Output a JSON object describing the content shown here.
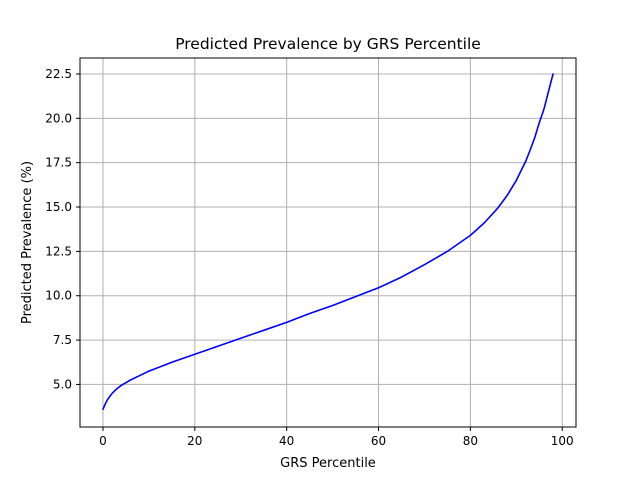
{
  "chart_data": {
    "type": "line",
    "title": "Predicted Prevalence by GRS Percentile",
    "xlabel": "GRS Percentile",
    "ylabel": "Predicted Prevalence (%)",
    "xlim": [
      -5,
      103
    ],
    "ylim": [
      2.6,
      23.4
    ],
    "xticks": [
      0,
      20,
      40,
      60,
      80,
      100
    ],
    "yticks": [
      5.0,
      7.5,
      10.0,
      12.5,
      15.0,
      17.5,
      20.0,
      22.5
    ],
    "xtick_labels": [
      "0",
      "20",
      "40",
      "60",
      "80",
      "100"
    ],
    "ytick_labels": [
      "5.0",
      "7.5",
      "10.0",
      "12.5",
      "15.0",
      "17.5",
      "20.0",
      "22.5"
    ],
    "grid": true,
    "series": [
      {
        "color": "#0000ff",
        "x": [
          0,
          0.5,
          1,
          2,
          3,
          4,
          5,
          6,
          8,
          10,
          12,
          15,
          20,
          25,
          30,
          35,
          40,
          45,
          50,
          55,
          60,
          65,
          70,
          75,
          80,
          83,
          86,
          88,
          90,
          92,
          93,
          94,
          95,
          96,
          96.5,
          97,
          97.5,
          98
        ],
        "y": [
          3.6,
          3.9,
          4.15,
          4.5,
          4.75,
          4.95,
          5.1,
          5.25,
          5.5,
          5.75,
          5.95,
          6.25,
          6.7,
          7.15,
          7.6,
          8.05,
          8.5,
          9.0,
          9.45,
          9.95,
          10.45,
          11.05,
          11.75,
          12.5,
          13.4,
          14.1,
          14.95,
          15.65,
          16.5,
          17.55,
          18.2,
          18.9,
          19.75,
          20.5,
          21.0,
          21.5,
          22.0,
          22.5
        ]
      }
    ]
  }
}
